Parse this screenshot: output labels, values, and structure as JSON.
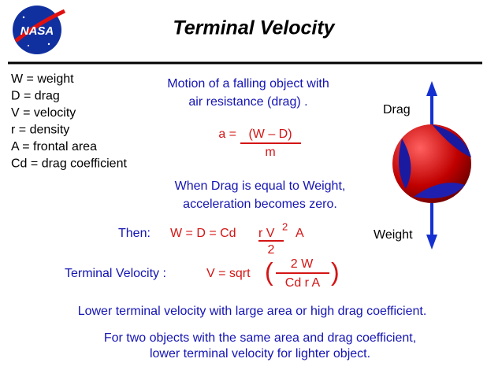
{
  "header": {
    "logo": "NASA",
    "title": "Terminal  Velocity"
  },
  "legend": [
    "W  =  weight",
    "D  =  drag",
    "V  =  velocity",
    "r  =  density",
    "A  =  frontal area",
    "Cd =  drag coefficient"
  ],
  "intro": [
    "Motion of a falling object with",
    "air resistance (drag) ."
  ],
  "equation": {
    "lhs": "a =",
    "numerator": "(W – D)",
    "denominator": "m"
  },
  "condition": [
    "When Drag is equal to Weight,",
    "acceleration becomes zero."
  ],
  "then": {
    "label": "Then:",
    "lhs": "W = D = Cd",
    "numerator": "r  V",
    "exponent": "2",
    "after": "A",
    "denominator": "2"
  },
  "terminal": {
    "label": "Terminal Velocity  :",
    "lhs": "V = sqrt",
    "open": "(",
    "numerator": "2  W",
    "denominator": "Cd  r  A",
    "close": ")"
  },
  "diagram": {
    "drag_label": "Drag",
    "weight_label": "Weight"
  },
  "notes": [
    "Lower terminal velocity with large area or high drag coefficient.",
    "For two objects with the same area and drag coefficient,",
    "lower terminal velocity for lighter object."
  ]
}
